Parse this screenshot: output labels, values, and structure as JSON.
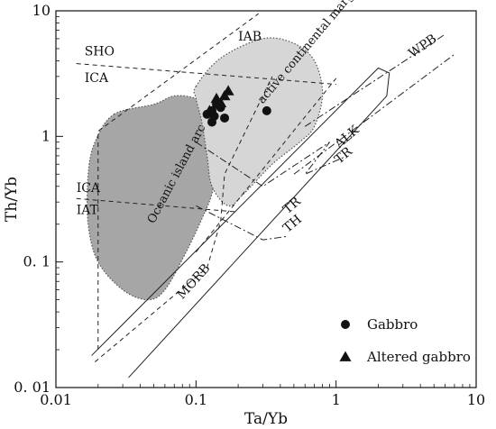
{
  "chart_data": {
    "type": "scatter",
    "xscale": "log",
    "yscale": "log",
    "xlim": [
      0.01,
      10
    ],
    "ylim": [
      0.01,
      10
    ],
    "xlabel": "Ta/Yb",
    "ylabel": "Th/Yb",
    "x_ticks": [
      "0.01",
      "0.1",
      "1",
      "10"
    ],
    "y_ticks": [
      "0. 01",
      "0. 1",
      "1",
      "10"
    ],
    "grid": false,
    "legend_position": "bottom-right",
    "series": [
      {
        "name": "Gabbro",
        "marker": "circle",
        "color": "#111111",
        "points": [
          {
            "x": 0.12,
            "y": 1.5
          },
          {
            "x": 0.13,
            "y": 1.6
          },
          {
            "x": 0.13,
            "y": 1.3
          },
          {
            "x": 0.135,
            "y": 1.45
          },
          {
            "x": 0.14,
            "y": 1.8
          },
          {
            "x": 0.15,
            "y": 1.7
          },
          {
            "x": 0.16,
            "y": 1.4
          },
          {
            "x": 0.32,
            "y": 1.6
          }
        ]
      },
      {
        "name": "Altered gabbro",
        "marker": "triangle",
        "color": "#111111",
        "points": [
          {
            "x": 0.125,
            "y": 1.6
          },
          {
            "x": 0.14,
            "y": 2.0
          },
          {
            "x": 0.15,
            "y": 1.85
          },
          {
            "x": 0.16,
            "y": 2.1
          },
          {
            "x": 0.17,
            "y": 2.3
          }
        ]
      }
    ],
    "regions": [
      {
        "label": "Oceanic island arc",
        "fill": "#a6a6a6",
        "boundary": [
          [
            0.026,
            1.5
          ],
          [
            0.05,
            1.8
          ],
          [
            0.07,
            2.1
          ],
          [
            0.1,
            2.0
          ],
          [
            0.13,
            1.6
          ],
          [
            0.15,
            1.0
          ],
          [
            0.14,
            0.6
          ],
          [
            0.13,
            0.35
          ],
          [
            0.11,
            0.22
          ],
          [
            0.085,
            0.12
          ],
          [
            0.06,
            0.06
          ],
          [
            0.045,
            0.05
          ],
          [
            0.03,
            0.06
          ],
          [
            0.02,
            0.1
          ],
          [
            0.017,
            0.2
          ],
          [
            0.017,
            0.5
          ],
          [
            0.019,
            0.9
          ]
        ]
      },
      {
        "label": "active continental margin",
        "fill": "#d6d6d6",
        "boundary": [
          [
            0.1,
            2.5
          ],
          [
            0.15,
            4.2
          ],
          [
            0.3,
            6.0
          ],
          [
            0.5,
            5.5
          ],
          [
            0.7,
            4.0
          ],
          [
            0.8,
            2.2
          ],
          [
            0.7,
            1.2
          ],
          [
            0.55,
            0.9
          ],
          [
            0.35,
            0.6
          ],
          [
            0.22,
            0.35
          ],
          [
            0.17,
            0.28
          ],
          [
            0.13,
            0.4
          ],
          [
            0.12,
            0.7
          ],
          [
            0.11,
            1.3
          ],
          [
            0.1,
            2.0
          ]
        ]
      }
    ],
    "boundary_lines": [
      {
        "style": "dashed",
        "points": [
          [
            0.014,
            3.8
          ],
          [
            1.0,
            2.6
          ]
        ]
      },
      {
        "style": "dashed",
        "points": [
          [
            0.014,
            0.32
          ],
          [
            0.2,
            0.25
          ]
        ]
      },
      {
        "style": "dashed",
        "points": [
          [
            0.02,
            0.02
          ],
          [
            0.02,
            1.1
          ],
          [
            0.28,
            9.5
          ]
        ]
      },
      {
        "style": "dashed",
        "points": [
          [
            0.019,
            0.016
          ],
          [
            0.12,
            0.09
          ],
          [
            0.15,
            0.21
          ],
          [
            0.16,
            0.5
          ],
          [
            0.35,
            3.0
          ]
        ]
      },
      {
        "style": "dashed",
        "points": [
          [
            0.1,
            0.12
          ],
          [
            1.0,
            2.9
          ]
        ]
      },
      {
        "style": "solid",
        "points": [
          [
            0.018,
            0.018
          ],
          [
            2.0,
            3.5
          ],
          [
            2.4,
            3.2
          ],
          [
            2.3,
            2.1
          ],
          [
            0.033,
            0.012
          ]
        ]
      },
      {
        "style": "dash-dot",
        "points": [
          [
            0.6,
            1.2
          ],
          [
            6.0,
            6.5
          ]
        ]
      },
      {
        "style": "dash-dot",
        "points": [
          [
            0.5,
            0.5
          ],
          [
            7.0,
            4.5
          ]
        ]
      },
      {
        "style": "dash-dot",
        "points": [
          [
            0.1,
            0.9
          ],
          [
            0.3,
            0.4
          ],
          [
            0.9,
            0.9
          ],
          [
            0.6,
            0.5
          ],
          [
            1.2,
            0.7
          ]
        ]
      },
      {
        "style": "dash-dot",
        "points": [
          [
            0.1,
            0.28
          ],
          [
            0.3,
            0.15
          ],
          [
            0.45,
            0.16
          ]
        ]
      }
    ],
    "labels": [
      {
        "text": "SHO",
        "x": 0.016,
        "y": 4.4
      },
      {
        "text": "ICA",
        "x": 0.016,
        "y": 2.7
      },
      {
        "text": "ICA",
        "x": 0.014,
        "y": 0.36
      },
      {
        "text": "IAT",
        "x": 0.014,
        "y": 0.24
      },
      {
        "text": "IAB",
        "x": 0.2,
        "y": 5.8
      },
      {
        "text": "WPB",
        "x": 3.5,
        "y": 4.2
      },
      {
        "text": "ALK",
        "x": 1.05,
        "y": 0.8
      },
      {
        "text": "TR",
        "x": 1.05,
        "y": 0.6
      },
      {
        "text": "TR",
        "x": 0.45,
        "y": 0.24
      },
      {
        "text": "TH",
        "x": 0.45,
        "y": 0.17
      },
      {
        "text": "MORB",
        "x": 0.08,
        "y": 0.05
      },
      {
        "text": "Oceanic island arc",
        "x": 0.05,
        "y": 0.2
      },
      {
        "text": "active continental margin",
        "x": 0.3,
        "y": 1.8
      }
    ]
  }
}
